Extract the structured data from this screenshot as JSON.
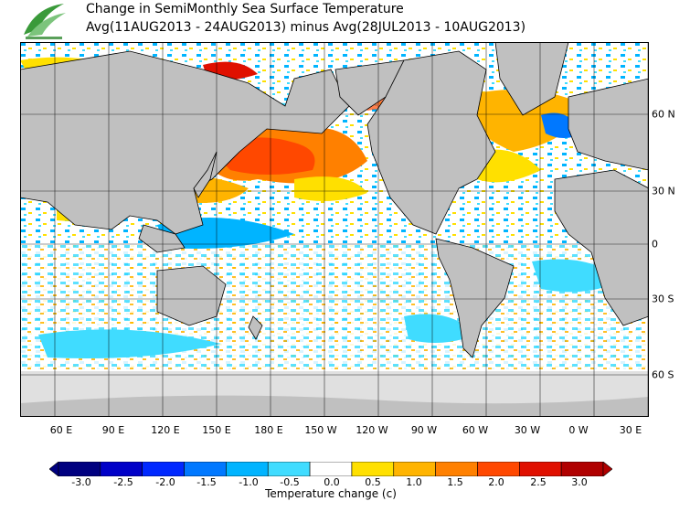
{
  "header": {
    "title_line1": "Change in SemiMonthly Sea Surface Temperature",
    "title_line2": "Avg(11AUG2013 - 24AUG2013) minus Avg(28JUL2013 - 10AUG2013)"
  },
  "map": {
    "longitude_labels": [
      "60 E",
      "90 E",
      "120 E",
      "150 E",
      "180 E",
      "150 W",
      "120 W",
      "90 W",
      "60 W",
      "30 W",
      "0 W",
      "30 E"
    ],
    "latitude_labels": [
      "60 N",
      "30 N",
      "0",
      "30 S",
      "60 S"
    ],
    "land_color": "#c0c0c0",
    "ice_color": "#e0e0e0",
    "grid_lines": true
  },
  "colorbar": {
    "title": "Temperature change  (c)",
    "ticks": [
      "-3.0",
      "-2.5",
      "-2.0",
      "-1.5",
      "-1.0",
      "-0.5",
      "0.0",
      "0.5",
      "1.0",
      "1.5",
      "2.0",
      "2.5",
      "3.0"
    ],
    "colors": [
      "#000080",
      "#0000c8",
      "#0028ff",
      "#0078ff",
      "#00b4ff",
      "#40dcff",
      "#ffffff",
      "#ffe000",
      "#ffb400",
      "#ff8000",
      "#ff4800",
      "#e01000",
      "#b00000"
    ]
  }
}
